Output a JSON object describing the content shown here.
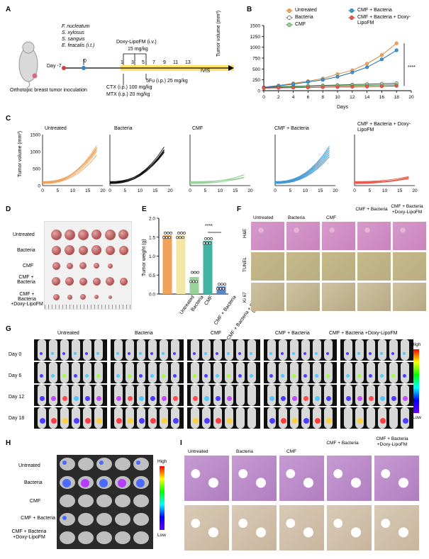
{
  "panels": {
    "A": {
      "label": "A",
      "bacteria": [
        "F. nucleatum",
        "S. xylosus",
        "S. sanguis",
        "E. feacalis (i.t.)"
      ],
      "day_neg7": "Day -7",
      "day0": "0",
      "inoculation": "Orthotopic breast tumor inoculation",
      "doxy": "Doxy-LipoFM (i.v.)",
      "doxy_dose": "15 mg/kg",
      "timeline_days": [
        "1",
        "3",
        "5",
        "7",
        "9",
        "11",
        "13"
      ],
      "ivis": "IVIS",
      "ctx": "CTX (i.p.) 100 mg/kg",
      "mtx": "MTX (i.p.) 20 mg/kg",
      "fu": "5Fu (i.p.) 25 mg/kg"
    },
    "B": {
      "label": "B",
      "legend": [
        "Untreated",
        "Bacteria",
        "CMF",
        "CMF + Bacteria",
        "CMF + Bacteria + Doxy-LipoFM"
      ],
      "ylabel": "Tumor volume (mm³)",
      "xlabel": "Days",
      "yticks": [
        "0",
        "250",
        "500",
        "750",
        "1000",
        "1250",
        "1500"
      ],
      "xticks": [
        "0",
        "2",
        "4",
        "6",
        "8",
        "10",
        "12",
        "14",
        "16",
        "18",
        "20"
      ],
      "sig": "****"
    },
    "C": {
      "label": "C",
      "ylabel": "Tumor volume (mm³)",
      "titles": [
        "Untreated",
        "Bacteria",
        "CMF",
        "CMF + Bacteria",
        "CMF + Bacteria + Doxy-LipoFM"
      ],
      "yticks": [
        "0",
        "500",
        "1000",
        "1500"
      ],
      "xticks": [
        "0",
        "5",
        "10",
        "15",
        "20"
      ]
    },
    "D": {
      "label": "D",
      "rows": [
        "Untreated",
        "Bacteria",
        "CMF",
        "CMF + Bacteria",
        "CMF + Bacteria +Doxy-LipoFM"
      ]
    },
    "E": {
      "label": "E",
      "ylabel": "Tumor weight (g)",
      "yticks": [
        "0.0",
        "0.5",
        "1.0",
        "1.5",
        "2.0"
      ],
      "categories": [
        "Untreated",
        "Bacteria",
        "CMF",
        "CMF + Bacteria",
        "CMF + Bacteria + Doxy-LipoFM"
      ],
      "sig": "****"
    },
    "F": {
      "label": "F",
      "cols": [
        "Untreated",
        "Bacteria",
        "CMF",
        "CMF + Bacteria",
        "CMF + Bacteria +Doxy-LipoFM"
      ],
      "rows": [
        "H&E",
        "TUNEL",
        "Ki 67"
      ]
    },
    "G": {
      "label": "G",
      "cols": [
        "Untreated",
        "Bacteria",
        "CMF",
        "CMF + Bacteria",
        "CMF + Bacteria +Doxy-LipoFM"
      ],
      "rows": [
        "Day 0",
        "Day 6",
        "Day 12",
        "Day 18"
      ],
      "high": "High",
      "low": "Low"
    },
    "H": {
      "label": "H",
      "rows": [
        "Untreated",
        "Bacteria",
        "CMF",
        "CMF + Bacteria",
        "CMF + Bacteria +Doxy-LipoFM"
      ],
      "high": "High",
      "low": "Low"
    },
    "I": {
      "label": "I",
      "cols": [
        "Untreated",
        "Bacteria",
        "CMF",
        "CMF + Bacteria",
        "CMF + Bacteria +Doxy-LipoFM"
      ]
    }
  },
  "colors": {
    "untreated": "#f0a25b",
    "bacteria": "#ffffff",
    "cmf": "#9ad39a",
    "cmf_bact": "#3c97d3",
    "combo": "#e55c4f"
  },
  "chart_data": [
    {
      "type": "line",
      "title": "",
      "xlabel": "Days",
      "ylabel": "Tumor volume (mm³)",
      "xlim": [
        0,
        20
      ],
      "ylim": [
        0,
        1500
      ],
      "x": [
        0,
        2,
        4,
        6,
        8,
        10,
        12,
        14,
        16,
        18
      ],
      "series": [
        {
          "name": "Untreated",
          "values": [
            80,
            120,
            170,
            220,
            280,
            380,
            470,
            620,
            820,
            1090
          ]
        },
        {
          "name": "Bacteria",
          "values": [
            70,
            90,
            100,
            110,
            120,
            130,
            140,
            150,
            160,
            170
          ]
        },
        {
          "name": "CMF",
          "values": [
            60,
            80,
            90,
            100,
            110,
            115,
            120,
            125,
            130,
            135
          ]
        },
        {
          "name": "CMF + Bacteria",
          "values": [
            75,
            110,
            150,
            200,
            250,
            320,
            420,
            540,
            720,
            930
          ]
        },
        {
          "name": "CMF + Bacteria + Doxy-LipoFM",
          "values": [
            60,
            65,
            70,
            75,
            80,
            85,
            90,
            95,
            100,
            110
          ]
        }
      ]
    },
    {
      "type": "bar",
      "title": "",
      "xlabel": "",
      "ylabel": "Tumor weight (g)",
      "ylim": [
        0,
        2
      ],
      "categories": [
        "Untreated",
        "Bacteria",
        "CMF",
        "CMF + Bacteria",
        "CMF + Bacteria + Doxy-LipoFM"
      ],
      "values": [
        1.55,
        1.55,
        0.45,
        1.4,
        0.2
      ]
    }
  ]
}
